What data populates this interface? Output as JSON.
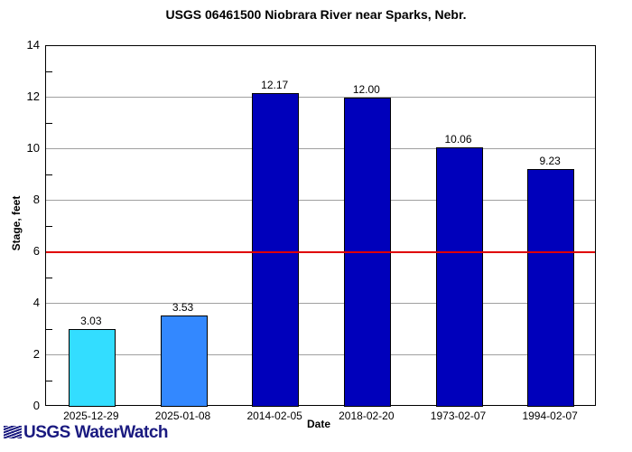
{
  "chart_data": {
    "type": "bar",
    "title": "USGS 06461500 Niobrara River near Sparks, Nebr.",
    "xlabel": "Date",
    "ylabel": "Stage, feet",
    "ylim": [
      0,
      14
    ],
    "yticks": [
      0,
      2,
      4,
      6,
      8,
      10,
      12,
      14
    ],
    "grid": true,
    "categories": [
      "2025-12-29",
      "2025-01-08",
      "2014-02-05",
      "2018-02-20",
      "1973-02-07",
      "1994-02-07"
    ],
    "values": [
      3.03,
      3.53,
      12.17,
      12.0,
      10.06,
      9.23
    ],
    "value_labels": [
      "3.03",
      "3.53",
      "12.17",
      "12.00",
      "10.06",
      "9.23"
    ],
    "bar_colors": [
      "#33ddff",
      "#3388ff",
      "#0000bb",
      "#0000bb",
      "#0000bb",
      "#0000bb"
    ],
    "reference_line": {
      "value": 6,
      "color": "#e00000"
    }
  },
  "footer": {
    "logo_text": "USGS WaterWatch"
  }
}
